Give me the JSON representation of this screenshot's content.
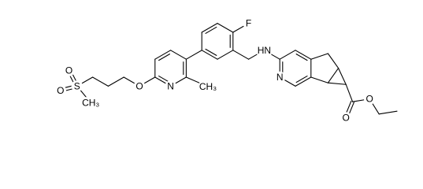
{
  "molecule": {
    "atom_labels": [
      "O",
      "S",
      "O",
      "CH₃",
      "O",
      "N",
      "CH₃",
      "F",
      "HN",
      "N",
      "O",
      "O"
    ]
  }
}
